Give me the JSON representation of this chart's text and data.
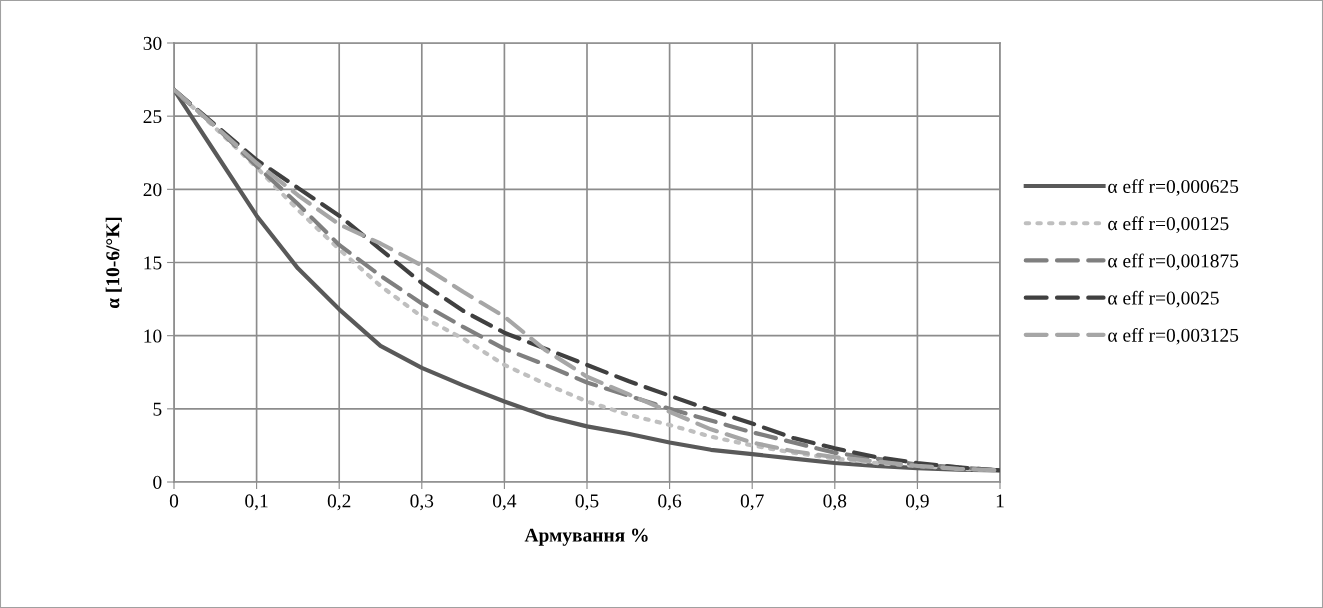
{
  "chart_data": {
    "type": "line",
    "xlabel": "Армування %",
    "ylabel": "α [10-6/°K]",
    "x": [
      0,
      0.05,
      0.1,
      0.15,
      0.2,
      0.25,
      0.3,
      0.35,
      0.4,
      0.45,
      0.5,
      0.55,
      0.6,
      0.65,
      0.7,
      0.75,
      0.8,
      0.85,
      0.9,
      0.95,
      1
    ],
    "series": [
      {
        "name": "α eff r=0,000625",
        "color": "#595959",
        "line_style": "solid",
        "values": [
          26.8,
          22.5,
          18.2,
          14.6,
          11.8,
          9.3,
          7.8,
          6.6,
          5.5,
          4.5,
          3.8,
          3.3,
          2.7,
          2.2,
          1.9,
          1.6,
          1.3,
          1.1,
          0.95,
          0.85,
          0.8
        ]
      },
      {
        "name": "α eff r=0,00125",
        "color": "#bfbfbf",
        "line_style": "dotted",
        "values": [
          26.8,
          24.2,
          21.5,
          18.6,
          15.9,
          13.4,
          11.3,
          9.8,
          8.0,
          6.7,
          5.5,
          4.6,
          3.9,
          3.1,
          2.5,
          2.0,
          1.6,
          1.3,
          1.1,
          0.9,
          0.8
        ]
      },
      {
        "name": "α eff r=0,001875",
        "color": "#7f7f7f",
        "line_style": "dashed",
        "values": [
          26.8,
          24.3,
          21.6,
          19.0,
          16.2,
          14.1,
          12.2,
          10.6,
          9.1,
          8.0,
          6.8,
          5.9,
          5.0,
          4.2,
          3.4,
          2.7,
          2.0,
          1.6,
          1.2,
          1.0,
          0.8
        ]
      },
      {
        "name": "α eff r=0,0025",
        "color": "#404040",
        "line_style": "dashed",
        "values": [
          26.8,
          24.4,
          22.0,
          20.1,
          18.2,
          15.9,
          13.6,
          11.7,
          10.2,
          9.1,
          8.0,
          6.9,
          5.9,
          4.9,
          4.0,
          3.0,
          2.3,
          1.7,
          1.3,
          1.0,
          0.8
        ]
      },
      {
        "name": "α eff r=0,003125",
        "color": "#a6a6a6",
        "line_style": "dashed",
        "values": [
          26.8,
          24.3,
          21.8,
          19.6,
          17.6,
          16.3,
          14.8,
          13.0,
          11.3,
          9.0,
          7.2,
          6.0,
          4.8,
          3.6,
          2.7,
          2.1,
          1.7,
          1.4,
          1.1,
          0.9,
          0.8
        ]
      }
    ],
    "xlim": [
      0,
      1
    ],
    "xticks": [
      0,
      {
        "value": 0.1,
        "label": "0,1"
      },
      {
        "value": 0.2,
        "label": "0,2"
      },
      {
        "value": 0.3,
        "label": "0,3"
      },
      {
        "value": 0.4,
        "label": "0,4"
      },
      {
        "value": 0.5,
        "label": "0,5"
      },
      {
        "value": 0.6,
        "label": "0,6"
      },
      {
        "value": 0.7,
        "label": "0,7"
      },
      {
        "value": 0.8,
        "label": "0,8"
      },
      {
        "value": 0.9,
        "label": "0,9"
      },
      1
    ],
    "ylim": [
      0,
      30
    ],
    "yticks": [
      0,
      5,
      10,
      15,
      20,
      25,
      30
    ],
    "grid": true,
    "legend": "right"
  }
}
